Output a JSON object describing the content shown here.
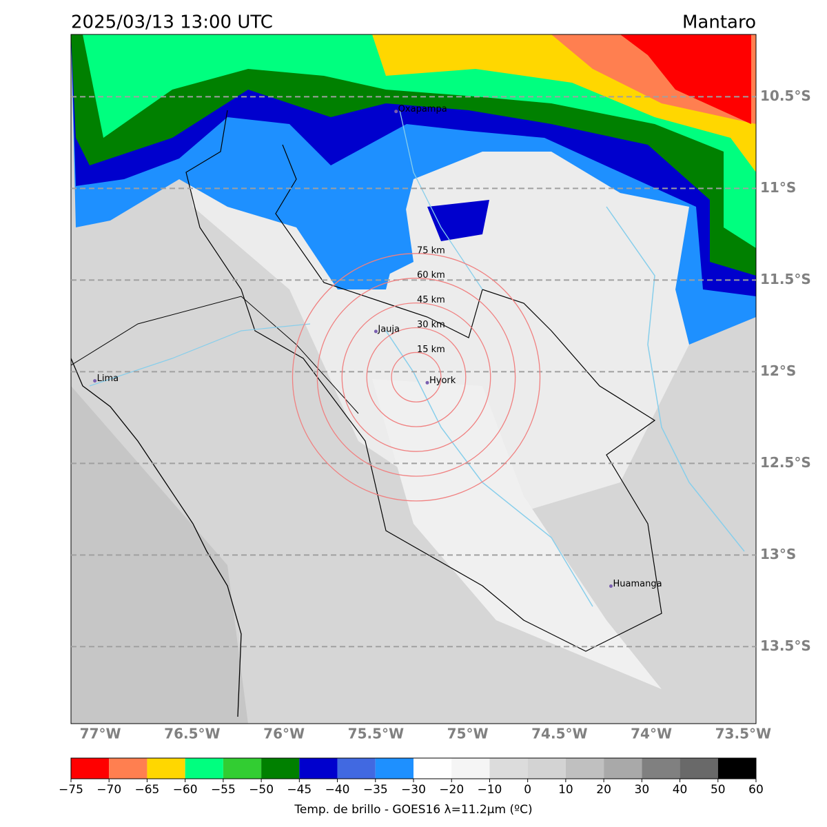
{
  "header": {
    "title": "2025/03/13 13:00 UTC",
    "region": "Mantaro"
  },
  "map": {
    "xlim": [
      -77.16,
      -73.43
    ],
    "ylim": [
      -13.92,
      -10.16
    ],
    "xticks": [
      {
        "value": -77,
        "label": "77°W"
      },
      {
        "value": -76.5,
        "label": "76.5°W"
      },
      {
        "value": -76,
        "label": "76°W"
      },
      {
        "value": -75.5,
        "label": "75.5°W"
      },
      {
        "value": -75,
        "label": "75°W"
      },
      {
        "value": -74.5,
        "label": "74.5°W"
      },
      {
        "value": -74,
        "label": "74°W"
      },
      {
        "value": -73.5,
        "label": "73.5°W"
      }
    ],
    "yticks": [
      {
        "value": -10.5,
        "label": "10.5°S"
      },
      {
        "value": -11,
        "label": "11°S"
      },
      {
        "value": -11.5,
        "label": "11.5°S"
      },
      {
        "value": -12,
        "label": "12°S"
      },
      {
        "value": -12.5,
        "label": "12.5°S"
      },
      {
        "value": -13,
        "label": "13°S"
      },
      {
        "value": -13.5,
        "label": "13.5°S"
      }
    ],
    "cities": [
      {
        "name": "Oxapampa",
        "lon": -75.39,
        "lat": -10.58
      },
      {
        "name": "Jauja",
        "lon": -75.5,
        "lat": -11.78
      },
      {
        "name": "Lima",
        "lon": -77.03,
        "lat": -12.05
      },
      {
        "name": "Hyork",
        "lon": -75.22,
        "lat": -12.06
      },
      {
        "name": "Huamanga",
        "lon": -74.22,
        "lat": -13.17
      }
    ],
    "rings": {
      "center_lon": -75.28,
      "center_lat": -12.03,
      "radii_km": [
        15,
        30,
        45,
        60,
        75
      ],
      "labels": [
        "15 km",
        "30 km",
        "45 km",
        "60 km",
        "75 km"
      ],
      "color": "#f08080"
    }
  },
  "colorbar": {
    "label": "Temp. de brillo - GOES16 λ=11.2μm (ºC)",
    "bounds": [
      {
        "value": -75,
        "label": "−75"
      },
      {
        "value": -70,
        "label": "−70"
      },
      {
        "value": -65,
        "label": "−65"
      },
      {
        "value": -60,
        "label": "−60"
      },
      {
        "value": -55,
        "label": "−55"
      },
      {
        "value": -50,
        "label": "−50"
      },
      {
        "value": -45,
        "label": "−45"
      },
      {
        "value": -40,
        "label": "−40"
      },
      {
        "value": -35,
        "label": "−35"
      },
      {
        "value": -30,
        "label": "−30"
      },
      {
        "value": -20,
        "label": "−20"
      },
      {
        "value": -10,
        "label": "−10"
      },
      0,
      10,
      20,
      30,
      40,
      50,
      60
    ],
    "colors": [
      "#ff0000",
      "#ff7f50",
      "#ffd700",
      "#00ff7f",
      "#32cd32",
      "#008000",
      "#0000cd",
      "#4169e1",
      "#1e90ff",
      "#ffffff",
      "#f5f5f5",
      "#dcdcdc",
      "#d3d3d3",
      "#c0c0c0",
      "#a9a9a9",
      "#808080",
      "#696969",
      "#000000"
    ]
  }
}
